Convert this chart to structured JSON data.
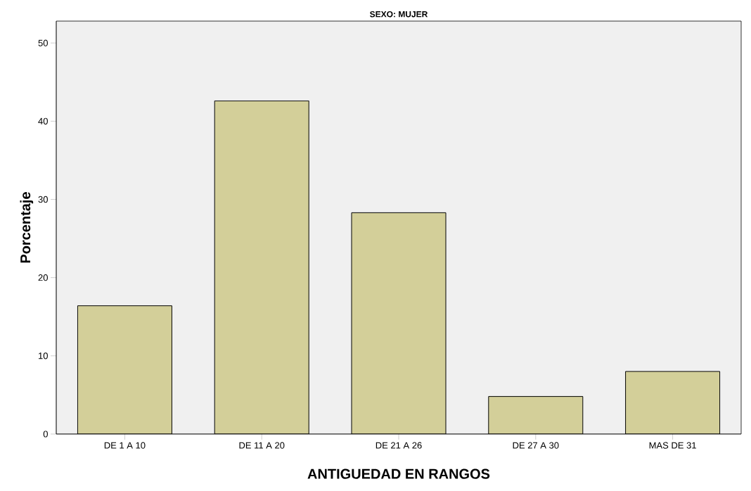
{
  "chart_data": {
    "type": "bar",
    "title": "SEXO: MUJER",
    "xlabel": "ANTIGUEDAD EN RANGOS",
    "ylabel": "Porcentaje",
    "categories": [
      "DE 1 A 10",
      "DE 11 A 20",
      "DE 21 A 26",
      "DE 27 A 30",
      "MAS DE 31"
    ],
    "values": [
      16.4,
      42.6,
      28.3,
      4.8,
      8.0
    ],
    "color": "#d3cf99",
    "ylim": [
      0,
      52.8
    ],
    "yticks": [
      0,
      10,
      20,
      30,
      40,
      50
    ]
  }
}
